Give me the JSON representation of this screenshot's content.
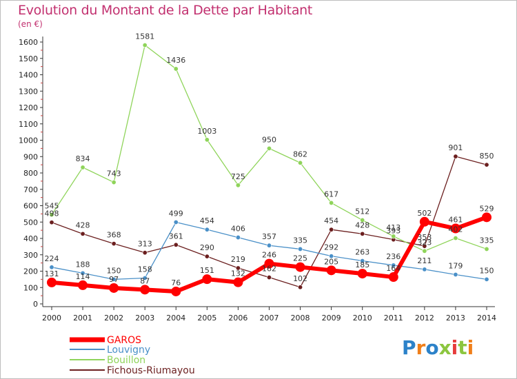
{
  "title": "Evolution du Montant de la Dette par Habitant",
  "unit": "(en €)",
  "logo": {
    "text": "Proxiti",
    "colors": [
      "#2c82c9",
      "#f07f1a",
      "#2c82c9",
      "#8cc63f",
      "#e63c3c",
      "#8cc63f",
      "#f07f1a"
    ]
  },
  "chart_data": {
    "type": "line",
    "categories": [
      "2000",
      "2001",
      "2002",
      "2003",
      "2004",
      "2005",
      "2006",
      "2007",
      "2008",
      "2009",
      "2010",
      "2011",
      "2012",
      "2013",
      "2014"
    ],
    "ylim": [
      0,
      1600
    ],
    "yticks": [
      0,
      100,
      200,
      300,
      400,
      500,
      600,
      700,
      800,
      900,
      1000,
      1100,
      1200,
      1300,
      1400,
      1500,
      1600
    ],
    "grid": false,
    "legend_position": "bottom-left",
    "series": [
      {
        "name": "GAROS",
        "color": "#ff0000",
        "values": [
          131,
          114,
          97,
          87,
          76,
          151,
          132,
          246,
          225,
          205,
          185,
          164,
          502,
          461,
          529
        ],
        "labels": [
          "131",
          "114",
          "97",
          "87",
          "76",
          "151",
          "132",
          "246",
          "225",
          "205",
          "185",
          "164",
          "502",
          "461",
          "529"
        ]
      },
      {
        "name": "Louvigny",
        "color": "#4a90c8",
        "values": [
          224,
          188,
          150,
          158,
          499,
          454,
          406,
          357,
          335,
          292,
          263,
          236,
          211,
          179,
          150
        ],
        "labels": [
          "224",
          "188",
          "150",
          "158",
          "499",
          "454",
          "406",
          "357",
          "335",
          "292",
          "263",
          "236",
          "211",
          "179",
          "150"
        ]
      },
      {
        "name": "Bouillon",
        "color": "#8fd45a",
        "values": [
          545,
          834,
          743,
          1581,
          1436,
          1003,
          725,
          950,
          862,
          617,
          512,
          413,
          323,
          402,
          335
        ],
        "labels": [
          "545",
          "834",
          "743",
          "1581",
          "1436",
          "1003",
          "725",
          "950",
          "862",
          "617",
          "512",
          "413",
          "323",
          "402",
          "335"
        ]
      },
      {
        "name": "Fichous-Riumayou",
        "color": "#6b1f1f",
        "values": [
          498,
          428,
          368,
          313,
          361,
          290,
          219,
          162,
          102,
          454,
          428,
          393,
          353,
          901,
          850
        ],
        "labels": [
          "498",
          "428",
          "368",
          "313",
          "361",
          "290",
          "219",
          "162",
          "102",
          "454",
          "428",
          "393",
          "353",
          "901",
          "850"
        ]
      }
    ]
  }
}
